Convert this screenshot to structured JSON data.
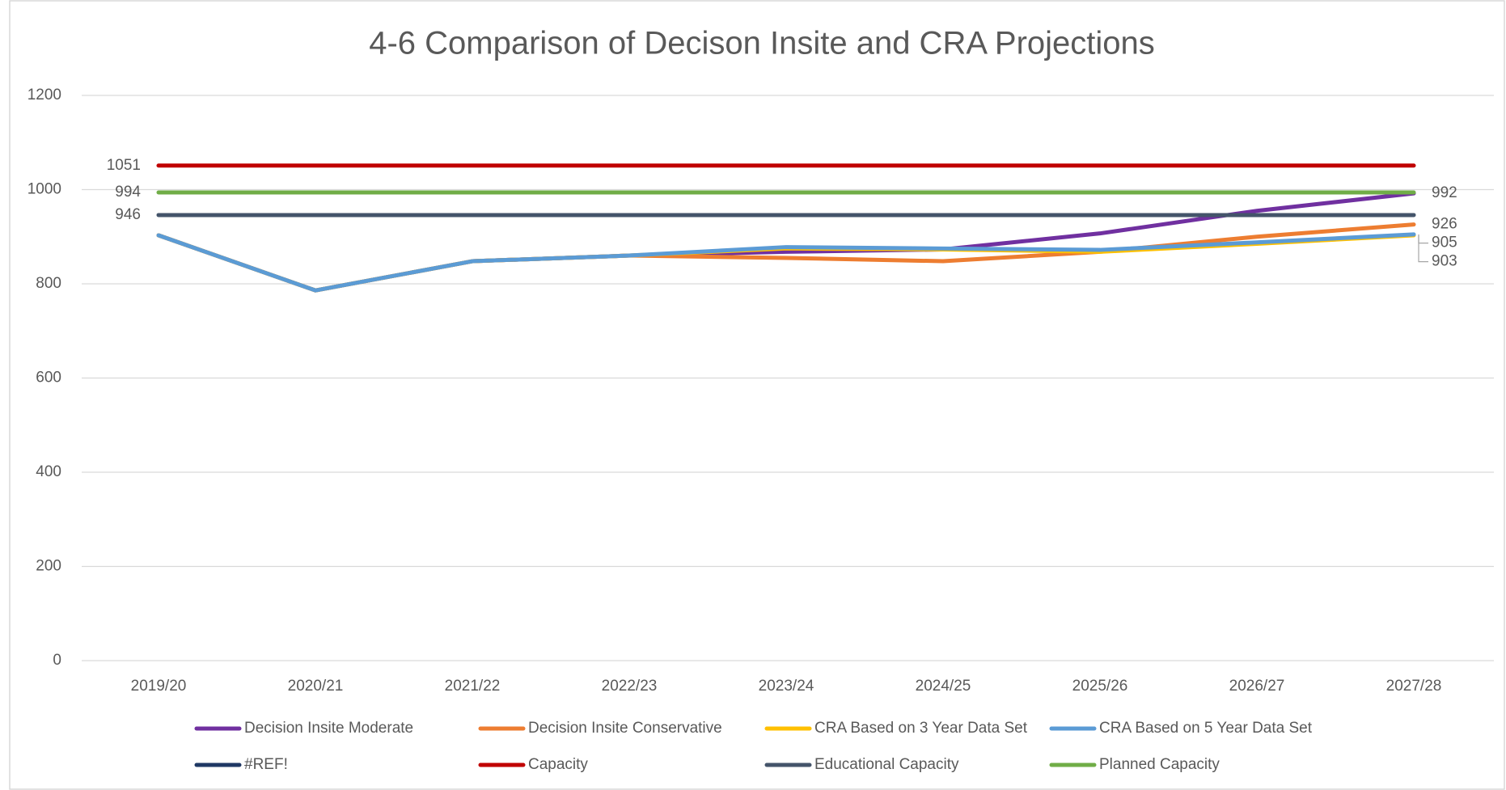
{
  "chart_data": {
    "type": "line",
    "title": "4-6 Comparison of Decison Insite and CRA Projections",
    "categories": [
      "2019/20",
      "2020/21",
      "2021/22",
      "2022/23",
      "2023/24",
      "2024/25",
      "2025/26",
      "2026/27",
      "2027/28"
    ],
    "ylim": [
      0,
      1200
    ],
    "yticks": [
      0,
      200,
      400,
      600,
      800,
      1000,
      1200
    ],
    "grid": true,
    "legend": "bottom",
    "series": [
      {
        "name": "Decision Insite Moderate",
        "color": "#7030a0",
        "values": [
          903,
          786,
          848,
          860,
          868,
          873,
          907,
          955,
          992
        ],
        "label_at": "end"
      },
      {
        "name": "Decision Insite Conservative",
        "color": "#ed7d31",
        "values": [
          903,
          786,
          848,
          860,
          855,
          848,
          868,
          900,
          926
        ],
        "label_at": "end"
      },
      {
        "name": "CRA Based on 3 Year Data Set",
        "color": "#ffc000",
        "values": [
          903,
          786,
          848,
          860,
          875,
          873,
          868,
          885,
          903
        ],
        "label_at": "end"
      },
      {
        "name": "CRA Based on 5 Year Data Set",
        "color": "#5b9bd5",
        "values": [
          903,
          786,
          848,
          860,
          878,
          875,
          872,
          888,
          905
        ],
        "label_at": "end"
      },
      {
        "name": "#REF!",
        "color": "#1f3864",
        "values": [
          null,
          null,
          null,
          null,
          null,
          null,
          null,
          null,
          null
        ]
      },
      {
        "name": "Capacity",
        "color": "#c00000",
        "values": [
          1051,
          1051,
          1051,
          1051,
          1051,
          1051,
          1051,
          1051,
          1051
        ],
        "label_at": "start"
      },
      {
        "name": "Educational Capacity",
        "color": "#44546a",
        "values": [
          946,
          946,
          946,
          946,
          946,
          946,
          946,
          946,
          946
        ],
        "label_at": "start"
      },
      {
        "name": "Planned Capacity",
        "color": "#70ad47",
        "values": [
          994,
          994,
          994,
          994,
          994,
          994,
          994,
          994,
          994
        ],
        "label_at": "start"
      }
    ]
  }
}
